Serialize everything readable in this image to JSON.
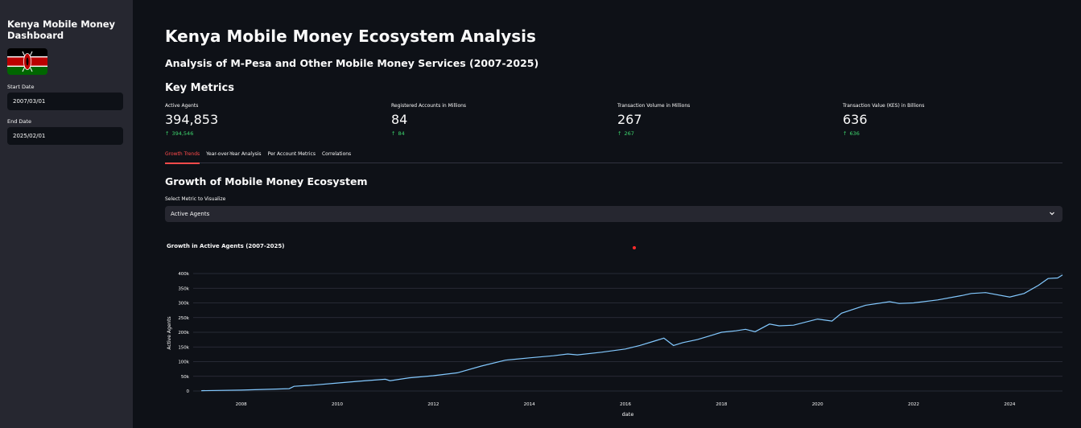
{
  "sidebar": {
    "title": "Kenya Mobile Money Dashboard",
    "start_label": "Start Date",
    "start_value": "2007/03/01",
    "end_label": "End Date",
    "end_value": "2025/02/01"
  },
  "header": {
    "title": "Kenya Mobile Money Ecosystem Analysis",
    "subtitle": "Analysis of M-Pesa and Other Mobile Money Services (2007-2025)"
  },
  "metrics_section": {
    "title": "Key Metrics",
    "items": [
      {
        "label": "Active Agents",
        "value": "394,853",
        "delta": "394,546"
      },
      {
        "label": "Registered Accounts in Millions",
        "value": "84",
        "delta": "84"
      },
      {
        "label": "Transaction Volume in Millions",
        "value": "267",
        "delta": "267"
      },
      {
        "label": "Transaction Value (KES) in Billions",
        "value": "636",
        "delta": "636"
      }
    ]
  },
  "tabs": [
    {
      "label": "Growth Trends",
      "active": true
    },
    {
      "label": "Year-over-Year Analysis",
      "active": false
    },
    {
      "label": "Per Account Metrics",
      "active": false
    },
    {
      "label": "Correlations",
      "active": false
    }
  ],
  "growth": {
    "title": "Growth of Mobile Money Ecosystem",
    "select_label": "Select Metric to Visualize",
    "select_value": "Active Agents"
  },
  "colors": {
    "accent": "#ff4b4b",
    "delta": "#3dd56d",
    "line": "#83c9ff"
  },
  "chart_data": {
    "type": "line",
    "title": "Growth in Active Agents (2007-2025)",
    "xlabel": "date",
    "ylabel": "Active Agents",
    "ylim": [
      0,
      400000
    ],
    "xlim": [
      2007.0,
      2025.1
    ],
    "grid": true,
    "x_ticks": [
      "2008",
      "2010",
      "2012",
      "2014",
      "2016",
      "2018",
      "2020",
      "2022",
      "2024"
    ],
    "y_ticks": [
      "0",
      "50k",
      "100k",
      "150k",
      "200k",
      "250k",
      "300k",
      "350k",
      "400k"
    ],
    "series": [
      {
        "x": [
          2007.17,
          2008.0,
          2009.0,
          2009.1,
          2009.5,
          2010.0,
          2010.5,
          2011.0,
          2011.1,
          2011.5,
          2012.0,
          2012.5,
          2013.0,
          2013.5,
          2014.0,
          2014.5,
          2014.8,
          2015.0,
          2015.5,
          2016.0,
          2016.3,
          2016.6,
          2016.8,
          2017.0,
          2017.2,
          2017.5,
          2018.0,
          2018.3,
          2018.5,
          2018.7,
          2019.0,
          2019.2,
          2019.5,
          2020.0,
          2020.3,
          2020.5,
          2021.0,
          2021.5,
          2021.7,
          2022.0,
          2022.5,
          2023.0,
          2023.2,
          2023.5,
          2024.0,
          2024.3,
          2024.6,
          2024.8,
          2025.0,
          2025.1
        ],
        "y": [
          1000,
          3000,
          8000,
          16000,
          20000,
          27000,
          34000,
          40000,
          35000,
          45000,
          52000,
          62000,
          85000,
          105000,
          113000,
          120000,
          126000,
          123000,
          132000,
          143000,
          155000,
          170000,
          180000,
          155000,
          165000,
          175000,
          200000,
          205000,
          210000,
          202000,
          228000,
          222000,
          224000,
          245000,
          238000,
          265000,
          292000,
          304000,
          298000,
          300000,
          310000,
          325000,
          332000,
          335000,
          320000,
          332000,
          360000,
          383000,
          385000,
          395000
        ]
      }
    ]
  }
}
